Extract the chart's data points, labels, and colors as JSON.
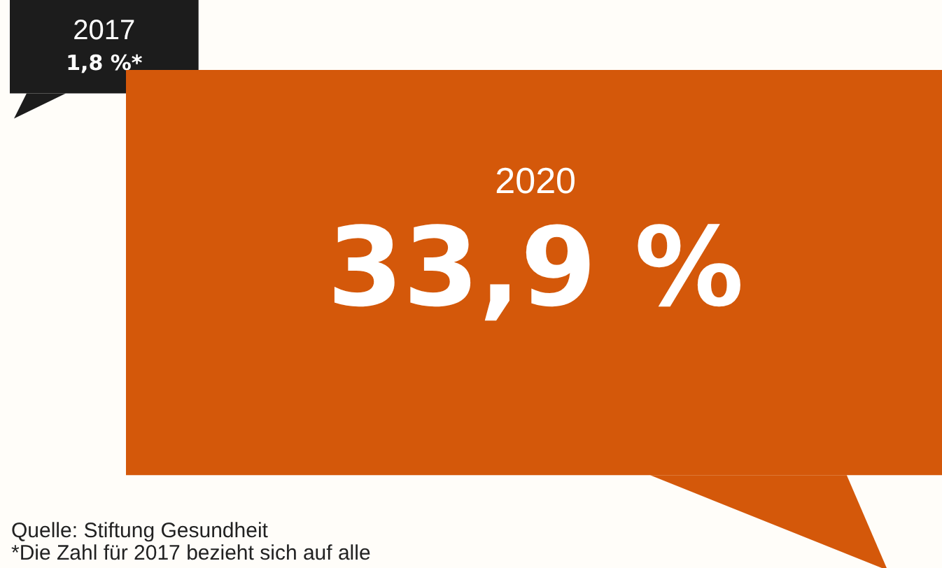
{
  "chart_data": {
    "type": "other",
    "categories": [
      "2017",
      "2020"
    ],
    "values": [
      1.8,
      33.9
    ],
    "value_labels": [
      "1,8 %*",
      "33,9 %"
    ],
    "colors": [
      "#1c1c1c",
      "#d4580a"
    ],
    "annotations": [
      "Quelle: Stiftung Gesundheit",
      "*Die Zahl für 2017 bezieht sich auf alle"
    ]
  }
}
